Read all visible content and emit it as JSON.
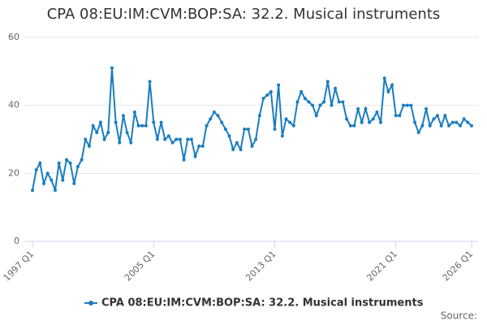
{
  "chart_data": {
    "type": "line",
    "title": "CPA 08:EU:IM:CVM:BOP:SA: 32.2. Musical instruments",
    "source": "Source:",
    "categories": [
      "1997 Q1",
      null,
      null,
      null,
      null,
      null,
      null,
      null,
      null,
      null,
      null,
      null,
      null,
      null,
      null,
      null,
      null,
      null,
      null,
      null,
      null,
      null,
      null,
      null,
      null,
      null,
      null,
      null,
      null,
      null,
      null,
      null,
      "2005 Q1",
      null,
      null,
      null,
      null,
      null,
      null,
      null,
      null,
      null,
      null,
      null,
      null,
      null,
      null,
      null,
      null,
      null,
      null,
      null,
      null,
      null,
      null,
      null,
      null,
      null,
      null,
      null,
      null,
      null,
      null,
      null,
      "2013 Q1",
      null,
      null,
      null,
      null,
      null,
      null,
      null,
      null,
      null,
      null,
      null,
      null,
      null,
      null,
      null,
      null,
      null,
      null,
      null,
      null,
      null,
      null,
      null,
      null,
      null,
      null,
      null,
      null,
      null,
      null,
      null,
      "2021 Q1",
      null,
      null,
      null,
      null,
      null,
      null,
      null,
      null,
      null,
      null,
      null,
      null,
      null,
      null,
      null,
      null,
      null,
      null,
      null,
      "2026 Q1"
    ],
    "series": [
      {
        "name": "CPA 08:EU:IM:CVM:BOP:SA: 32.2. Musical instruments",
        "color": "#1a7dc0",
        "values": [
          15,
          21,
          23,
          17,
          20,
          18,
          15,
          23,
          18,
          24,
          23,
          17,
          22,
          24,
          30,
          28,
          34,
          32,
          35,
          30,
          32,
          51,
          35,
          29,
          37,
          32,
          29,
          38,
          34,
          34,
          34,
          47,
          35,
          30,
          35,
          30,
          31,
          29,
          30,
          30,
          24,
          30,
          30,
          25,
          28,
          28,
          34,
          36,
          38,
          37,
          35,
          33,
          31,
          27,
          29,
          27,
          33,
          33,
          28,
          30,
          37,
          42,
          43,
          44,
          33,
          46,
          31,
          36,
          35,
          34,
          41,
          44,
          42,
          41,
          40,
          37,
          40,
          41,
          47,
          40,
          45,
          41,
          41,
          36,
          34,
          34,
          39,
          35,
          39,
          35,
          36,
          38,
          35,
          48,
          44,
          46,
          37,
          37,
          40,
          40,
          40,
          35,
          32,
          34,
          39,
          34,
          36,
          37,
          34,
          37,
          34,
          35,
          35,
          34,
          36,
          35,
          34
        ]
      }
    ],
    "ylim": [
      0,
      60
    ],
    "yticks": [
      0,
      20,
      40,
      60
    ],
    "grid": true,
    "legend": "bottom"
  }
}
